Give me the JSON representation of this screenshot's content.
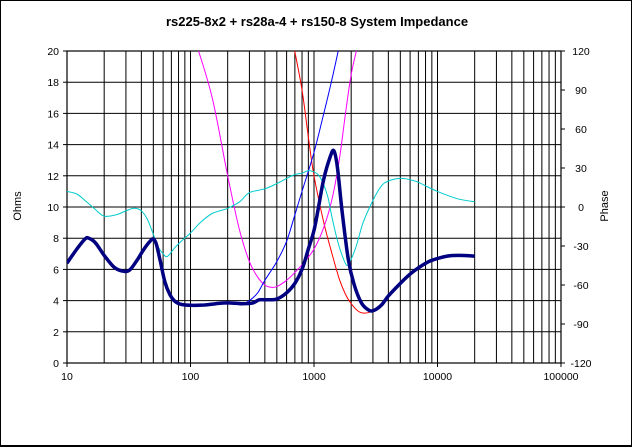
{
  "chart_data": {
    "type": "line",
    "title": "rs225-8x2  + rs28a-4  + rs150-8   System Impedance",
    "xlabel": "",
    "ylabel": "Ohms",
    "y2label": "Phase",
    "xscale": "log",
    "xlim": [
      10,
      100000
    ],
    "ylim": [
      0,
      20
    ],
    "y2lim": [
      -120,
      120
    ],
    "x_tick_labels": [
      "10",
      "100",
      "1000",
      "10000",
      "100000"
    ],
    "y_tick_labels": [
      "0",
      "2",
      "4",
      "6",
      "8",
      "10",
      "12",
      "14",
      "16",
      "18",
      "20"
    ],
    "y2_tick_labels": [
      "-120",
      "-90",
      "-60",
      "-30",
      "0",
      "30",
      "60",
      "90",
      "120"
    ],
    "grid": true,
    "legend": "none",
    "colors": {
      "system_impedance": "#000080",
      "phase": "#00CCCC",
      "magenta": "#FF00FF",
      "blue": "#0000FF",
      "red": "#FF0000",
      "black": "#000000"
    },
    "series": [
      {
        "axis": "left",
        "color": "#000080",
        "width": 3.5,
        "points": [
          [
            10,
            6.4
          ],
          [
            12,
            7.3
          ],
          [
            14,
            7.95
          ],
          [
            15,
            8.0
          ],
          [
            17,
            7.7
          ],
          [
            20,
            6.9
          ],
          [
            24,
            6.15
          ],
          [
            28,
            5.9
          ],
          [
            32,
            5.95
          ],
          [
            37,
            6.6
          ],
          [
            42,
            7.3
          ],
          [
            47,
            7.8
          ],
          [
            50,
            7.95
          ],
          [
            53,
            7.6
          ],
          [
            57,
            6.5
          ],
          [
            62,
            5.2
          ],
          [
            68,
            4.4
          ],
          [
            75,
            3.95
          ],
          [
            85,
            3.75
          ],
          [
            100,
            3.7
          ],
          [
            130,
            3.72
          ],
          [
            160,
            3.8
          ],
          [
            200,
            3.85
          ],
          [
            260,
            3.8
          ],
          [
            320,
            3.85
          ],
          [
            360,
            4.05
          ],
          [
            420,
            4.05
          ],
          [
            500,
            4.1
          ],
          [
            600,
            4.5
          ],
          [
            700,
            5.1
          ],
          [
            800,
            6.0
          ],
          [
            900,
            7.3
          ],
          [
            1000,
            8.5
          ],
          [
            1100,
            10.2
          ],
          [
            1200,
            11.8
          ],
          [
            1350,
            13.2
          ],
          [
            1450,
            13.6
          ],
          [
            1550,
            12.5
          ],
          [
            1700,
            9.5
          ],
          [
            1900,
            6.6
          ],
          [
            2100,
            5.1
          ],
          [
            2400,
            3.9
          ],
          [
            2700,
            3.45
          ],
          [
            3000,
            3.35
          ],
          [
            3500,
            3.7
          ],
          [
            4000,
            4.3
          ],
          [
            5000,
            5.1
          ],
          [
            6000,
            5.7
          ],
          [
            7000,
            6.1
          ],
          [
            8500,
            6.5
          ],
          [
            10000,
            6.7
          ],
          [
            12000,
            6.85
          ],
          [
            15000,
            6.9
          ],
          [
            20000,
            6.85
          ]
        ]
      },
      {
        "axis": "left",
        "color": "#FF0000",
        "width": 1,
        "points": [
          [
            690,
            20.2
          ],
          [
            800,
            17.5
          ],
          [
            900,
            14.5
          ],
          [
            1000,
            12
          ],
          [
            1200,
            9
          ],
          [
            1400,
            7
          ],
          [
            1600,
            5.4
          ],
          [
            1800,
            4.4
          ],
          [
            2000,
            3.8
          ],
          [
            2300,
            3.3
          ],
          [
            2600,
            3.2
          ],
          [
            3000,
            3.35
          ],
          [
            3500,
            3.75
          ],
          [
            4000,
            4.3
          ],
          [
            5000,
            5.1
          ],
          [
            6000,
            5.7
          ],
          [
            7000,
            6.1
          ],
          [
            8500,
            6.5
          ],
          [
            10000,
            6.75
          ],
          [
            12000,
            6.9
          ],
          [
            15000,
            6.95
          ],
          [
            20000,
            6.85
          ]
        ]
      },
      {
        "axis": "left",
        "color": "#FF00FF",
        "width": 1,
        "points": [
          [
            113,
            20.3
          ],
          [
            150,
            17
          ],
          [
            200,
            12
          ],
          [
            250,
            8.5
          ],
          [
            300,
            6.5
          ],
          [
            350,
            5.5
          ],
          [
            400,
            5.0
          ],
          [
            450,
            4.85
          ],
          [
            500,
            4.9
          ],
          [
            600,
            5.3
          ],
          [
            700,
            5.8
          ],
          [
            800,
            6.3
          ],
          [
            1000,
            7.3
          ],
          [
            1200,
            8.7
          ],
          [
            1400,
            10.5
          ],
          [
            1600,
            13
          ],
          [
            1800,
            16
          ],
          [
            2000,
            18.5
          ],
          [
            2250,
            20.3
          ]
        ]
      },
      {
        "axis": "left",
        "color": "#0000FF",
        "width": 1,
        "points": [
          [
            250,
            3.7
          ],
          [
            300,
            4.0
          ],
          [
            350,
            4.5
          ],
          [
            400,
            5.3
          ],
          [
            500,
            6.5
          ],
          [
            600,
            7.8
          ],
          [
            700,
            9.5
          ],
          [
            800,
            11
          ],
          [
            1000,
            13.5
          ],
          [
            1200,
            16
          ],
          [
            1400,
            18.2
          ],
          [
            1600,
            20.3
          ]
        ]
      },
      {
        "axis": "right",
        "color": "#00CCCC",
        "width": 1,
        "points": [
          [
            10,
            12
          ],
          [
            12,
            10
          ],
          [
            14,
            5
          ],
          [
            17,
            -2
          ],
          [
            20,
            -7
          ],
          [
            25,
            -6
          ],
          [
            30,
            -3
          ],
          [
            35,
            -1
          ],
          [
            40,
            -3
          ],
          [
            45,
            -10
          ],
          [
            50,
            -21
          ],
          [
            55,
            -31
          ],
          [
            60,
            -36
          ],
          [
            65,
            -38
          ],
          [
            75,
            -31
          ],
          [
            85,
            -26
          ],
          [
            100,
            -20
          ],
          [
            120,
            -12
          ],
          [
            150,
            -5
          ],
          [
            200,
            -1
          ],
          [
            250,
            4
          ],
          [
            300,
            11
          ],
          [
            400,
            14
          ],
          [
            500,
            18
          ],
          [
            600,
            22
          ],
          [
            700,
            25
          ],
          [
            800,
            26
          ],
          [
            900,
            28
          ],
          [
            1000,
            27
          ],
          [
            1100,
            24
          ],
          [
            1200,
            17
          ],
          [
            1300,
            7
          ],
          [
            1400,
            -8
          ],
          [
            1550,
            -26
          ],
          [
            1700,
            -38
          ],
          [
            1850,
            -45
          ],
          [
            2000,
            -40
          ],
          [
            2200,
            -30
          ],
          [
            2500,
            -12
          ],
          [
            3000,
            5
          ],
          [
            3500,
            16
          ],
          [
            4000,
            20
          ],
          [
            5000,
            22
          ],
          [
            6000,
            21
          ],
          [
            7000,
            19
          ],
          [
            8500,
            15
          ],
          [
            10000,
            12
          ],
          [
            12000,
            9
          ],
          [
            15000,
            6
          ],
          [
            20000,
            4
          ]
        ]
      }
    ]
  }
}
